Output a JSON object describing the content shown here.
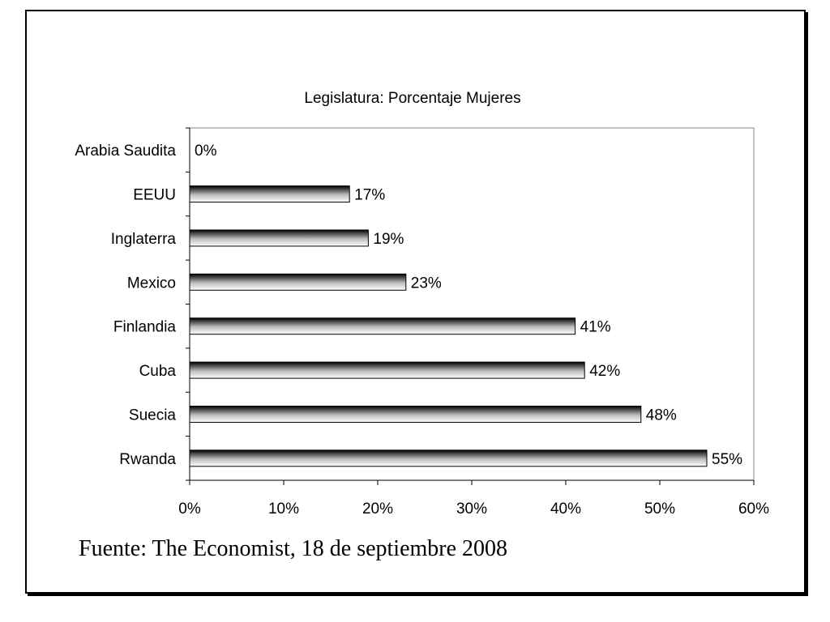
{
  "chart_data": {
    "type": "bar",
    "orientation": "horizontal",
    "title": "Legislatura: Porcentaje Mujeres",
    "categories": [
      "Arabia Saudita",
      "EEUU",
      "Inglaterra",
      "Mexico",
      "Finlandia",
      "Cuba",
      "Suecia",
      "Rwanda"
    ],
    "values": [
      0,
      17,
      19,
      23,
      41,
      42,
      48,
      55
    ],
    "value_labels": [
      "0%",
      "17%",
      "19%",
      "23%",
      "41%",
      "42%",
      "48%",
      "55%"
    ],
    "xlim": [
      0,
      60
    ],
    "x_ticks": [
      0,
      10,
      20,
      30,
      40,
      50,
      60
    ],
    "x_tick_labels": [
      "0%",
      "10%",
      "20%",
      "30%",
      "40%",
      "50%",
      "60%"
    ],
    "xlabel": "",
    "ylabel": "",
    "grid": false,
    "legend": "none",
    "bar_fill": "gradient black-white"
  },
  "source_note": "Fuente: The Economist, 18 de septiembre 2008"
}
